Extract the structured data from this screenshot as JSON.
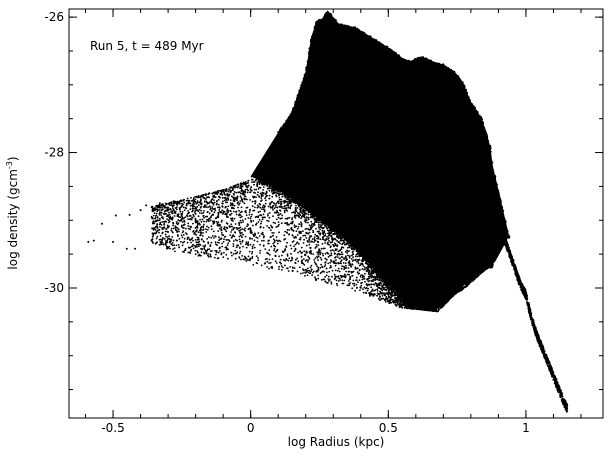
{
  "chart_data": {
    "type": "scatter",
    "title": "",
    "xlabel": "log Radius (kpc)",
    "ylabel": "log density (gcm",
    "ylabel_sup": "-3",
    "ylabel_close": ")",
    "annotation": "Run 5, t = 489 Myr",
    "xlim": [
      -0.66,
      1.28
    ],
    "ylim": [
      -31.92,
      -25.88
    ],
    "xticks": [
      -0.5,
      0,
      0.5,
      1
    ],
    "xtick_labels": [
      "-0.5",
      "0",
      "0.5",
      "1"
    ],
    "yticks": [
      -26,
      -28,
      -30
    ],
    "ytick_labels": [
      "-26",
      "-28",
      "-30"
    ],
    "grid": false,
    "legend": "none",
    "marker_color": "#000000",
    "upper_envelope": {
      "x": [
        0.1,
        0.15,
        0.2,
        0.22,
        0.24,
        0.26,
        0.28,
        0.32,
        0.38,
        0.44,
        0.5,
        0.55,
        0.58,
        0.62,
        0.66,
        0.7,
        0.74,
        0.77,
        0.8,
        0.84,
        0.87,
        0.88,
        0.9,
        0.92,
        0.94
      ],
      "y": [
        -27.7,
        -27.4,
        -26.8,
        -26.3,
        -26.05,
        -26.02,
        -25.9,
        -26.1,
        -26.15,
        -26.3,
        -26.45,
        -26.6,
        -26.65,
        -26.58,
        -26.65,
        -26.7,
        -26.8,
        -26.95,
        -27.25,
        -27.5,
        -27.9,
        -28.2,
        -28.55,
        -28.9,
        -29.25
      ]
    },
    "lower_envelope": {
      "x": [
        0.0,
        0.05,
        0.1,
        0.15,
        0.2,
        0.25,
        0.3,
        0.35,
        0.4,
        0.45,
        0.5,
        0.55,
        0.6,
        0.65,
        0.7,
        0.75,
        0.8,
        0.83,
        0.85,
        0.87,
        0.89,
        0.91,
        0.93,
        0.94
      ],
      "y": [
        -28.35,
        -28.45,
        -28.55,
        -28.7,
        -28.85,
        -29.0,
        -29.15,
        -29.3,
        -29.5,
        -29.75,
        -29.95,
        -30.15,
        -30.3,
        -30.32,
        -30.2,
        -30.0,
        -29.85,
        -29.75,
        -29.75,
        -29.7,
        -29.6,
        -29.45,
        -29.3,
        -29.2
      ]
    },
    "scatter_envelope": {
      "x": [
        -0.35,
        -0.25,
        -0.15,
        -0.05,
        0.05,
        0.15,
        0.25,
        0.35,
        0.45,
        0.55,
        0.62,
        0.68,
        0.74,
        0.78,
        0.82,
        0.86
      ],
      "y": [
        -29.35,
        -29.5,
        -29.55,
        -29.6,
        -29.7,
        -29.8,
        -29.9,
        -30.0,
        -30.15,
        -30.3,
        -30.32,
        -30.35,
        -30.1,
        -30.0,
        -29.85,
        -29.7
      ]
    },
    "sparse_points": {
      "x": [
        -0.59,
        -0.57,
        -0.54,
        -0.5,
        -0.49,
        -0.45,
        -0.44,
        -0.42,
        -0.4,
        -0.38,
        -0.36,
        -0.33,
        -0.31,
        -0.28,
        -0.26
      ],
      "y": [
        -29.32,
        -29.3,
        -29.05,
        -29.32,
        -28.93,
        -29.42,
        -28.92,
        -29.42,
        -28.85,
        -28.78,
        -29.3,
        -28.75,
        -29.35,
        -28.72,
        -29.4
      ]
    },
    "tail": {
      "x": [
        0.92,
        0.95,
        0.98,
        1.0,
        1.02,
        1.04,
        1.06,
        1.08,
        1.1,
        1.12,
        1.14,
        1.15
      ],
      "y": [
        -29.25,
        -29.6,
        -29.95,
        -30.1,
        -30.45,
        -30.7,
        -30.9,
        -31.1,
        -31.3,
        -31.5,
        -31.7,
        -31.78
      ]
    },
    "tail_width": 0.12
  }
}
